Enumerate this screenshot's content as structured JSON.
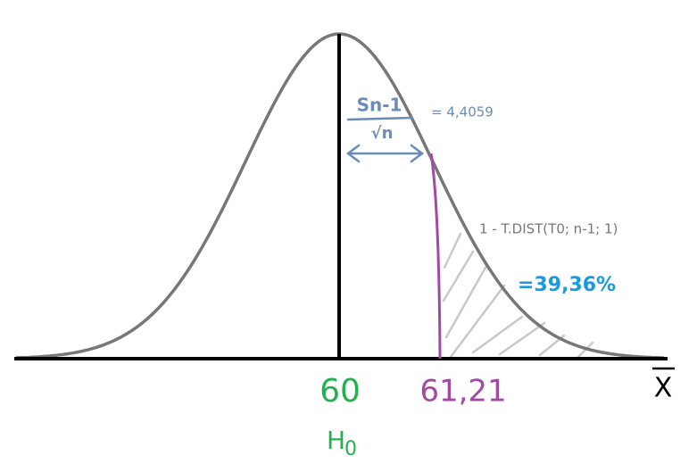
{
  "labels": {
    "std_error": {
      "numerator": "Sn-1",
      "denominator": "√n",
      "value": "= 4,4059"
    },
    "formula": "1 - T.DIST(T0; n-1; 1)",
    "result": "=39,36%",
    "mean": "60",
    "hypothesis": {
      "letter": "H",
      "subscript": "0"
    },
    "observed": "61,21",
    "axis": "X"
  }
}
